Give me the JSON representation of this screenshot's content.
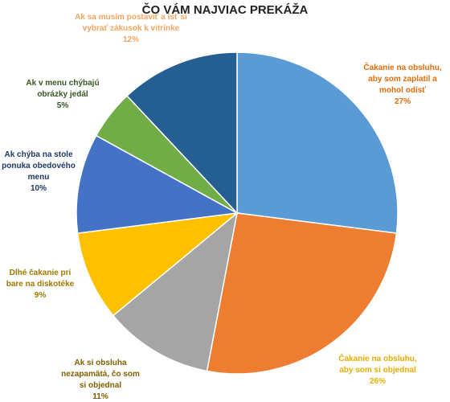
{
  "chart_data": {
    "type": "pie",
    "title": "ČO VÁM NAJVIAC PREKÁŽA",
    "categories": [
      "Čakanie na obsluhu, aby som zaplatil a mohol odísť",
      "Čakanie na obsluhu, aby som si objednal",
      "Ak si obsluha nezapamätá, čo som si objednal",
      "Dlhé čakanie pri bare na diskotéke",
      "Ak chýba na stole ponuka obedového menu",
      "Ak v menu chýbajú obrázky jedál",
      "Ak sa musím postaviť a ísť si vybrať zákusok k vitrínke"
    ],
    "values": [
      27,
      26,
      11,
      9,
      10,
      5,
      12
    ],
    "value_labels": [
      "27%",
      "26%",
      "11%",
      "9%",
      "10%",
      "5%",
      "12%"
    ],
    "colors": [
      "#5b9bd5",
      "#ed7d31",
      "#a5a5a5",
      "#ffc000",
      "#4472c4",
      "#70ad47",
      "#255e91"
    ],
    "label_colors": [
      "#e46c0a",
      "#e6ac00",
      "#7f6000",
      "#a07800",
      "#203864",
      "#375623",
      "#f4a460"
    ]
  }
}
